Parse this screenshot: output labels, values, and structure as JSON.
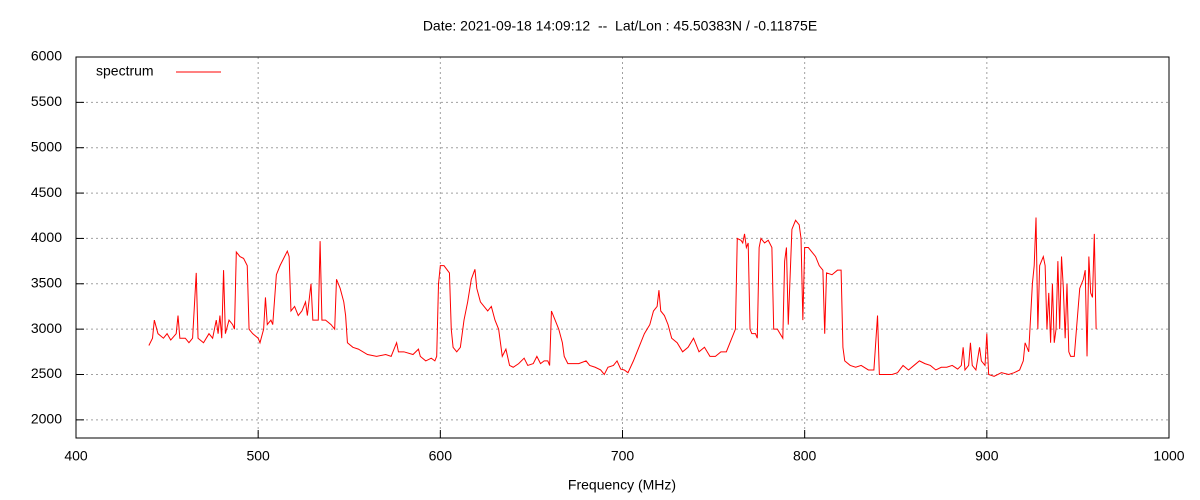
{
  "chart_data": {
    "type": "line",
    "title": "Date: 2021-09-18 14:09:12  --  Lat/Lon : 45.50383N / -0.11875E",
    "x_label": "Frequency (MHz)",
    "xlim": [
      400,
      1000
    ],
    "xticks": [
      400,
      500,
      600,
      700,
      800,
      900,
      1000
    ],
    "ylim": [
      1800,
      6000
    ],
    "yticks": [
      2000,
      2500,
      3000,
      3500,
      4000,
      4500,
      5000,
      5500,
      6000
    ],
    "grid": true,
    "legend": "top-left",
    "series": [
      {
        "name": "spectrum",
        "color": "#ff0000",
        "x": [
          440,
          442,
          443,
          445,
          448,
          450,
          452,
          455,
          456,
          457,
          460,
          462,
          464,
          466,
          467,
          470,
          473,
          475,
          477,
          478,
          479,
          480,
          481,
          482,
          484,
          486,
          487,
          488,
          490,
          492,
          494,
          495,
          497,
          500,
          501,
          503,
          504,
          505,
          507,
          508,
          510,
          512,
          514,
          516,
          517,
          518,
          520,
          522,
          524,
          526,
          527,
          529,
          530,
          533,
          534,
          535,
          537,
          540,
          542,
          543,
          545,
          547,
          548,
          549,
          552,
          555,
          560,
          565,
          570,
          573,
          576,
          577,
          580,
          585,
          588,
          589,
          592,
          595,
          597,
          598,
          599,
          600,
          602,
          605,
          606,
          607,
          609,
          611,
          613,
          615,
          617,
          619,
          620,
          622,
          624,
          626,
          628,
          630,
          632,
          634,
          636,
          638,
          640,
          643,
          646,
          648,
          651,
          653,
          655,
          657,
          659,
          660,
          661,
          663,
          665,
          667,
          668,
          670,
          673,
          676,
          680,
          682,
          685,
          688,
          690,
          692,
          695,
          697,
          699,
          701,
          703,
          706,
          709,
          712,
          715,
          717,
          719,
          720,
          721,
          723,
          725,
          727,
          730,
          733,
          736,
          739,
          742,
          745,
          748,
          751,
          754,
          757,
          760,
          762,
          763,
          765,
          766,
          767,
          768,
          769,
          770,
          771,
          773,
          774,
          775,
          776,
          778,
          780,
          782,
          783,
          785,
          788,
          789,
          790,
          791,
          793,
          795,
          797,
          798,
          799,
          800,
          802,
          804,
          806,
          808,
          810,
          811,
          812,
          815,
          818,
          820,
          821,
          822,
          825,
          828,
          831,
          835,
          838,
          840,
          841,
          845,
          848,
          851,
          854,
          857,
          860,
          863,
          866,
          869,
          872,
          875,
          878,
          881,
          884,
          886,
          887,
          888,
          890,
          891,
          892,
          894,
          896,
          897,
          899,
          900,
          901,
          904,
          908,
          912,
          915,
          918,
          920,
          921,
          923,
          925,
          926,
          927,
          928,
          929,
          931,
          932,
          933,
          934,
          935,
          936,
          937,
          938,
          939,
          940,
          941,
          942,
          943,
          944,
          945,
          946,
          948,
          950,
          951,
          953,
          954,
          955,
          956,
          957,
          958,
          959,
          960
        ],
        "values": [
          2820,
          2900,
          3100,
          2950,
          2900,
          2950,
          2880,
          2950,
          3150,
          2900,
          2900,
          2850,
          2900,
          3620,
          2900,
          2850,
          2950,
          2900,
          3100,
          2950,
          3150,
          2900,
          3650,
          2950,
          3100,
          3050,
          3000,
          3850,
          3800,
          3780,
          3700,
          3000,
          2950,
          2900,
          2850,
          3000,
          3350,
          3050,
          3100,
          3050,
          3600,
          3700,
          3780,
          3860,
          3800,
          3200,
          3250,
          3150,
          3200,
          3300,
          3150,
          3500,
          3100,
          3100,
          3970,
          3100,
          3100,
          3050,
          3000,
          3550,
          3450,
          3300,
          3150,
          2850,
          2800,
          2780,
          2720,
          2700,
          2720,
          2700,
          2850,
          2750,
          2750,
          2720,
          2780,
          2700,
          2650,
          2680,
          2650,
          2700,
          3500,
          3700,
          3700,
          3620,
          3000,
          2800,
          2750,
          2800,
          3100,
          3300,
          3550,
          3660,
          3450,
          3300,
          3250,
          3200,
          3250,
          3100,
          3000,
          2700,
          2780,
          2600,
          2580,
          2620,
          2680,
          2600,
          2620,
          2700,
          2620,
          2650,
          2650,
          2600,
          3200,
          3100,
          3000,
          2850,
          2700,
          2620,
          2620,
          2620,
          2650,
          2600,
          2580,
          2550,
          2500,
          2580,
          2600,
          2650,
          2560,
          2550,
          2520,
          2650,
          2800,
          2950,
          3050,
          3200,
          3250,
          3430,
          3200,
          3150,
          3050,
          2900,
          2850,
          2750,
          2800,
          2900,
          2750,
          2800,
          2700,
          2700,
          2750,
          2750,
          2900,
          3000,
          4000,
          3980,
          3950,
          4050,
          3900,
          3950,
          3000,
          2950,
          2950,
          2900,
          3900,
          4000,
          3950,
          3980,
          3900,
          3000,
          3000,
          2900,
          3750,
          3900,
          3050,
          4100,
          4200,
          4150,
          4000,
          3100,
          3900,
          3900,
          3850,
          3800,
          3700,
          3650,
          2950,
          3620,
          3600,
          3650,
          3650,
          2800,
          2650,
          2600,
          2580,
          2600,
          2550,
          2550,
          3150,
          2500,
          2500,
          2500,
          2520,
          2600,
          2550,
          2600,
          2650,
          2620,
          2600,
          2550,
          2580,
          2580,
          2600,
          2560,
          2600,
          2800,
          2550,
          2600,
          2850,
          2600,
          2550,
          2800,
          2650,
          2600,
          2950,
          2500,
          2480,
          2520,
          2500,
          2520,
          2550,
          2650,
          2850,
          2750,
          3500,
          3700,
          4230,
          3000,
          3700,
          3800,
          3700,
          3000,
          3400,
          2850,
          3500,
          2850,
          3000,
          3750,
          3000,
          3800,
          3450,
          2900,
          3500,
          2750,
          2700,
          2700,
          3200,
          3450,
          3550,
          3650,
          2700,
          3800,
          3400,
          3350,
          4050,
          3000
        ]
      }
    ]
  }
}
